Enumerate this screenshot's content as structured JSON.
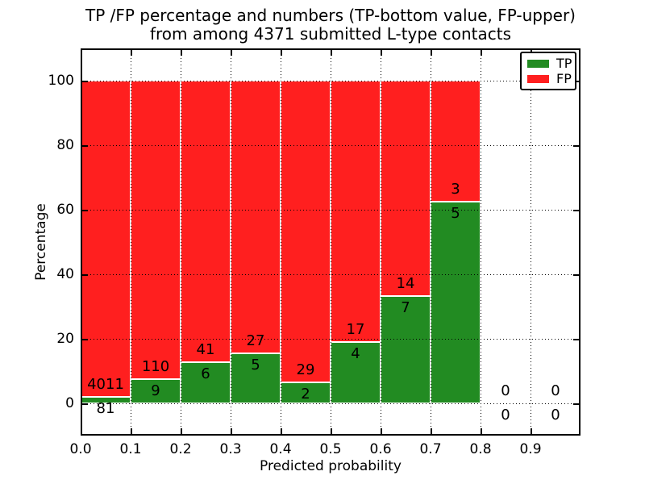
{
  "title": {
    "line1": "TP /FP percentage and numbers (TP-bottom value, FP-upper)",
    "line2": "from among 4371 submitted L-type contacts"
  },
  "axes": {
    "xlabel": "Predicted probability",
    "ylabel": "Percentage",
    "x_tick_labels": [
      "0.0",
      "0.1",
      "0.2",
      "0.3",
      "0.4",
      "0.5",
      "0.6",
      "0.7",
      "0.8",
      "0.9"
    ],
    "x_tick_values": [
      0.0,
      0.1,
      0.2,
      0.3,
      0.4,
      0.5,
      0.6,
      0.7,
      0.8,
      0.9
    ],
    "y_tick_labels": [
      "0",
      "20",
      "40",
      "60",
      "80",
      "100"
    ],
    "y_tick_values": [
      0,
      20,
      40,
      60,
      80,
      100
    ],
    "xlim": [
      0.0,
      1.0
    ],
    "ylim": [
      -10,
      110
    ]
  },
  "legend": {
    "position": "upper right",
    "items": [
      {
        "label": "TP",
        "color": "#228b22"
      },
      {
        "label": "FP",
        "color": "#ff1f1f"
      }
    ]
  },
  "colors": {
    "tp_green": "#228b22",
    "fp_red": "#ff1f1f",
    "bar_edge": "#ffffff",
    "grid": "#000000"
  },
  "chart_data": {
    "type": "bar",
    "stacked": true,
    "normalized_to_percent": true,
    "title": "TP /FP percentage and numbers (TP-bottom value, FP-upper) from among 4371 submitted L-type contacts",
    "xlabel": "Predicted probability",
    "ylabel": "Percentage",
    "total_contacts": 4371,
    "bin_start": [
      0.0,
      0.1,
      0.2,
      0.3,
      0.4,
      0.5,
      0.6,
      0.7,
      0.8,
      0.9
    ],
    "bin_width": 0.1,
    "series": [
      {
        "name": "TP",
        "counts": [
          81,
          9,
          6,
          5,
          2,
          4,
          7,
          5,
          0,
          0
        ]
      },
      {
        "name": "FP",
        "counts": [
          4011,
          110,
          41,
          27,
          29,
          17,
          14,
          3,
          0,
          0
        ]
      }
    ],
    "tp_percent": [
      1.98,
      7.56,
      12.77,
      15.63,
      6.45,
      19.05,
      33.33,
      62.5,
      0,
      0
    ],
    "annotation_rule": "FP count printed just above TP/FP boundary, TP count just below it",
    "grid": "dotted black lines at every tick, drawn above bars",
    "legend_position": "upper right"
  }
}
